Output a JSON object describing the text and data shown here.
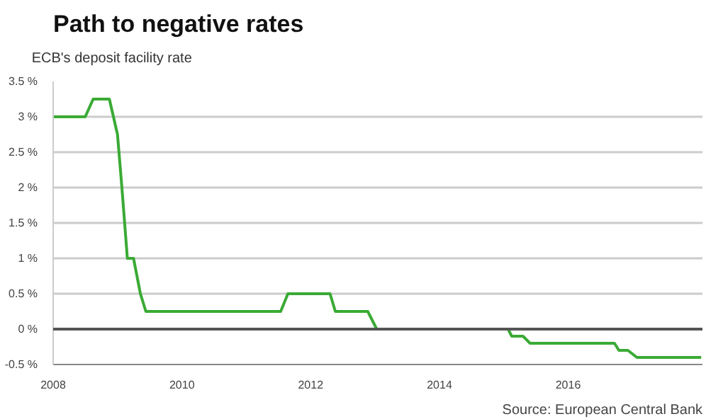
{
  "chart_data": {
    "type": "line",
    "title": "Path to negative rates",
    "legend": "top left",
    "grid": "y",
    "marker": "none",
    "line_style": "solid",
    "x": [
      "2008-01-01",
      "2008-07-01",
      "2008-08-15",
      "2008-11-15",
      "2008-12-31",
      "2009-01-25",
      "2009-02-25",
      "2009-04-01",
      "2009-05-10",
      "2009-06-10",
      "2011-07-15",
      "2011-08-25",
      "2012-04-20",
      "2012-05-20",
      "2012-11-20",
      "2013-01-10",
      "2015-01-25",
      "2015-02-15",
      "2015-04-20",
      "2015-05-30",
      "2016-09-20",
      "2016-10-15",
      "2016-12-05",
      "2017-01-25",
      "2018-01-25"
    ],
    "series": [
      {
        "name": "ECB's deposit facility rate",
        "color": "#3aaa35",
        "values": [
          3.0,
          3.0,
          3.25,
          3.25,
          2.75,
          2.0,
          1.0,
          1.0,
          0.5,
          0.25,
          0.25,
          0.5,
          0.5,
          0.25,
          0.25,
          0,
          0,
          -0.1,
          -0.1,
          -0.2,
          -0.2,
          -0.3,
          -0.3,
          -0.4,
          -0.4
        ]
      }
    ],
    "xlim": [
      "2008-01-01",
      "2018-02-01"
    ],
    "xticks": [
      {
        "value": "2008-01-01",
        "label": "2008"
      },
      {
        "value": "2010-01-01",
        "label": "2010"
      },
      {
        "value": "2012-01-01",
        "label": "2012"
      },
      {
        "value": "2014-01-01",
        "label": "2014"
      },
      {
        "value": "2016-01-01",
        "label": "2016"
      }
    ],
    "ylim": [
      -0.5,
      3.5
    ],
    "yticks": [
      {
        "value": -0.5,
        "label": "-0.5 %"
      },
      {
        "value": 0,
        "label": "0 %"
      },
      {
        "value": 0.5,
        "label": "0.5 %"
      },
      {
        "value": 1,
        "label": "1 %"
      },
      {
        "value": 1.5,
        "label": "1.5 %"
      },
      {
        "value": 2,
        "label": "2 %"
      },
      {
        "value": 2.5,
        "label": "2.5 %"
      },
      {
        "value": 3,
        "label": "3 %"
      },
      {
        "value": 3.5,
        "label": "3.5 %"
      }
    ],
    "ref_lines": [
      {
        "axis": "y",
        "value": 0,
        "color": "#555555"
      }
    ],
    "annotations": [
      "Source: European Central Bank"
    ]
  }
}
